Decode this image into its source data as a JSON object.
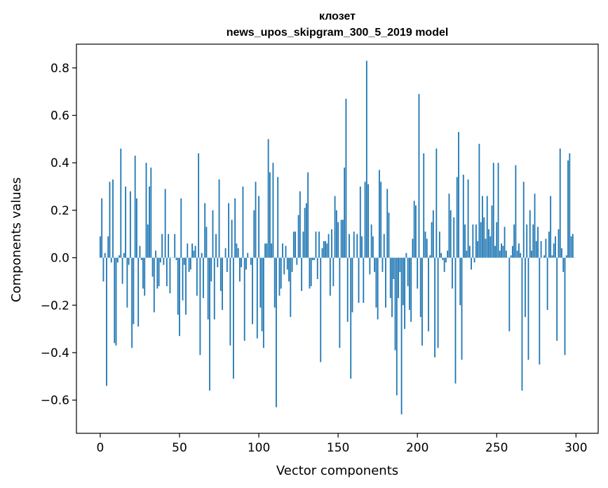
{
  "chart_data": {
    "type": "bar",
    "title": "клозет",
    "subtitle": "news_upos_skipgram_300_5_2019 model",
    "xlabel": "Vector components",
    "ylabel": "Components values",
    "xlim": [
      -15,
      314
    ],
    "ylim": [
      -0.74,
      0.9
    ],
    "xticks": [
      0,
      50,
      100,
      150,
      200,
      250,
      300
    ],
    "xtick_labels": [
      "0",
      "50",
      "100",
      "150",
      "200",
      "250",
      "300"
    ],
    "yticks": [
      -0.6,
      -0.4,
      -0.2,
      0.0,
      0.2,
      0.4,
      0.6,
      0.8
    ],
    "ytick_labels": [
      "−0.6",
      "−0.4",
      "−0.2",
      "0.0",
      "0.2",
      "0.4",
      "0.6",
      "0.8"
    ],
    "grid": false,
    "bar_color": "#1f77b4",
    "x": [
      0,
      1,
      2,
      3,
      4,
      5,
      6,
      7,
      8,
      9,
      10,
      11,
      12,
      13,
      14,
      15,
      16,
      17,
      18,
      19,
      20,
      21,
      22,
      23,
      24,
      25,
      26,
      27,
      28,
      29,
      30,
      31,
      32,
      33,
      34,
      35,
      36,
      37,
      38,
      39,
      40,
      41,
      42,
      43,
      44,
      45,
      46,
      47,
      48,
      49,
      50,
      51,
      52,
      53,
      54,
      55,
      56,
      57,
      58,
      59,
      60,
      61,
      62,
      63,
      64,
      65,
      66,
      67,
      68,
      69,
      70,
      71,
      72,
      73,
      74,
      75,
      76,
      77,
      78,
      79,
      80,
      81,
      82,
      83,
      84,
      85,
      86,
      87,
      88,
      89,
      90,
      91,
      92,
      93,
      94,
      95,
      96,
      97,
      98,
      99,
      100,
      101,
      102,
      103,
      104,
      105,
      106,
      107,
      108,
      109,
      110,
      111,
      112,
      113,
      114,
      115,
      116,
      117,
      118,
      119,
      120,
      121,
      122,
      123,
      124,
      125,
      126,
      127,
      128,
      129,
      130,
      131,
      132,
      133,
      134,
      135,
      136,
      137,
      138,
      139,
      140,
      141,
      142,
      143,
      144,
      145,
      146,
      147,
      148,
      149,
      150,
      151,
      152,
      153,
      154,
      155,
      156,
      157,
      158,
      159,
      160,
      161,
      162,
      163,
      164,
      165,
      166,
      167,
      168,
      169,
      170,
      171,
      172,
      173,
      174,
      175,
      176,
      177,
      178,
      179,
      180,
      181,
      182,
      183,
      184,
      185,
      186,
      187,
      188,
      189,
      190,
      191,
      192,
      193,
      194,
      195,
      196,
      197,
      198,
      199,
      200,
      201,
      202,
      203,
      204,
      205,
      206,
      207,
      208,
      209,
      210,
      211,
      212,
      213,
      214,
      215,
      216,
      217,
      218,
      219,
      220,
      221,
      222,
      223,
      224,
      225,
      226,
      227,
      228,
      229,
      230,
      231,
      232,
      233,
      234,
      235,
      236,
      237,
      238,
      239,
      240,
      241,
      242,
      243,
      244,
      245,
      246,
      247,
      248,
      249,
      250,
      251,
      252,
      253,
      254,
      255,
      256,
      257,
      258,
      259,
      260,
      261,
      262,
      263,
      264,
      265,
      266,
      267,
      268,
      269,
      270,
      271,
      272,
      273,
      274,
      275,
      276,
      277,
      278,
      279,
      280,
      281,
      282,
      283,
      284,
      285,
      286,
      287,
      288,
      289,
      290,
      291,
      292,
      293,
      294,
      295,
      296,
      297,
      298,
      299
    ],
    "values": [
      0.09,
      0.25,
      -0.1,
      0.02,
      -0.54,
      0.09,
      0.32,
      -0.02,
      0.33,
      -0.36,
      -0.37,
      -0.02,
      0.01,
      0.46,
      -0.11,
      0.02,
      0.3,
      -0.21,
      -0.03,
      0.28,
      -0.38,
      -0.28,
      0.43,
      0.25,
      -0.29,
      0.05,
      -0.01,
      -0.13,
      -0.16,
      0.4,
      0.14,
      0.3,
      0.38,
      -0.08,
      -0.23,
      0.03,
      -0.13,
      -0.12,
      -0.02,
      0.1,
      -0.03,
      0.29,
      -0.12,
      0.1,
      -0.15,
      0.0,
      0.0,
      0.1,
      -0.01,
      -0.24,
      -0.33,
      0.25,
      -0.18,
      -0.03,
      -0.24,
      0.06,
      -0.06,
      -0.05,
      0.06,
      0.03,
      0.05,
      -0.16,
      0.44,
      -0.41,
      0.02,
      -0.17,
      0.23,
      0.13,
      -0.26,
      -0.56,
      -0.1,
      0.2,
      -0.26,
      0.1,
      -0.04,
      0.33,
      -0.14,
      -0.22,
      0.0,
      0.04,
      -0.06,
      0.23,
      -0.37,
      0.16,
      -0.51,
      0.25,
      0.06,
      0.04,
      -0.1,
      -0.04,
      0.3,
      -0.35,
      -0.05,
      0.02,
      0.0,
      -0.03,
      -0.28,
      0.2,
      0.32,
      -0.34,
      0.26,
      -0.21,
      -0.31,
      -0.38,
      0.06,
      0.06,
      0.5,
      0.36,
      0.06,
      0.4,
      -0.21,
      -0.63,
      0.34,
      -0.16,
      -0.13,
      0.06,
      -0.07,
      0.05,
      -0.05,
      -0.1,
      -0.25,
      -0.06,
      0.11,
      0.11,
      -0.03,
      0.18,
      0.28,
      -0.14,
      0.11,
      0.21,
      0.23,
      0.36,
      -0.13,
      -0.12,
      -0.01,
      -0.01,
      0.11,
      -0.09,
      0.11,
      -0.44,
      0.04,
      0.07,
      0.07,
      0.06,
      0.1,
      -0.16,
      0.12,
      -0.12,
      0.26,
      0.2,
      0.15,
      -0.38,
      0.16,
      0.16,
      0.38,
      0.67,
      -0.27,
      0.1,
      -0.51,
      -0.23,
      0.11,
      0.0,
      0.1,
      -0.19,
      0.3,
      0.09,
      -0.19,
      0.32,
      0.83,
      0.31,
      -0.07,
      0.14,
      0.09,
      -0.06,
      -0.21,
      -0.26,
      0.37,
      0.32,
      -0.06,
      0.1,
      -0.21,
      0.29,
      0.19,
      -0.17,
      -0.25,
      -0.09,
      -0.39,
      -0.58,
      -0.17,
      -0.06,
      -0.66,
      -0.2,
      -0.3,
      0.02,
      -0.12,
      -0.22,
      -0.27,
      0.08,
      0.24,
      0.22,
      -0.13,
      0.69,
      -0.25,
      -0.37,
      0.44,
      0.11,
      0.08,
      -0.31,
      0.01,
      0.15,
      0.2,
      -0.42,
      0.46,
      -0.38,
      0.11,
      0.02,
      -0.01,
      -0.06,
      -0.02,
      0.03,
      0.27,
      0.2,
      -0.13,
      0.17,
      -0.53,
      0.34,
      0.53,
      -0.2,
      -0.43,
      0.35,
      0.14,
      0.03,
      0.33,
      0.05,
      -0.05,
      0.14,
      -0.02,
      0.14,
      0.07,
      0.48,
      0.15,
      0.26,
      0.17,
      0.08,
      0.26,
      0.12,
      0.09,
      0.22,
      0.4,
      0.05,
      0.15,
      0.4,
      0.03,
      0.06,
      0.05,
      0.13,
      0.03,
      0.0,
      -0.31,
      0.01,
      0.05,
      0.14,
      0.39,
      0.03,
      0.06,
      0.02,
      -0.56,
      0.32,
      -0.25,
      0.14,
      -0.43,
      0.2,
      0.03,
      0.14,
      0.27,
      0.07,
      0.13,
      -0.45,
      0.07,
      0.0,
      0.01,
      0.08,
      -0.22,
      0.11,
      0.26,
      0.01,
      0.06,
      0.09,
      -0.35,
      0.12,
      0.46,
      0.04,
      -0.06,
      -0.41,
      0.01,
      0.41,
      0.44,
      0.09,
      0.1,
      0.0
    ]
  }
}
